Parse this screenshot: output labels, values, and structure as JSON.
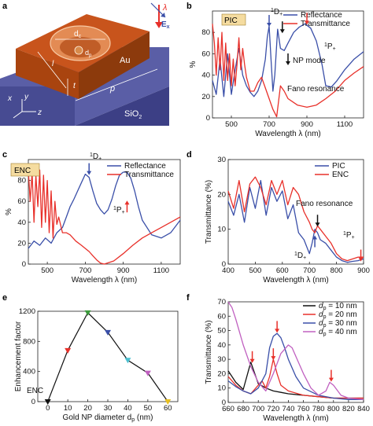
{
  "panels": {
    "a": {
      "letter": "a",
      "lambda": "λ",
      "field": "E",
      "field_sub": "x",
      "dc": "d",
      "dc_sub": "c",
      "dp": "d",
      "dp_sub": "p",
      "au": "Au",
      "sio2": "SiO",
      "sio2_sub": "2",
      "l": "l",
      "t": "t",
      "p": "p",
      "x": "x",
      "y": "y",
      "z": "z"
    },
    "b": {
      "letter": "b",
      "inset": "PIC",
      "ann_d": "D",
      "ann_d_pre": "1",
      "ann_d_sub": "+",
      "ann_p": "P",
      "ann_p_pre": "1",
      "ann_p_sub": "+",
      "ann_np": "NP mode",
      "ann_fano": "Fano resonance"
    },
    "c": {
      "letter": "c",
      "inset": "ENC",
      "ann_d": "D",
      "ann_d_pre": "1",
      "ann_d_sub": "+",
      "ann_p": "P",
      "ann_p_pre": "1",
      "ann_p_sub": "+"
    },
    "d": {
      "letter": "d",
      "ann_fano": "Fano resonance",
      "ann_d": "D",
      "ann_d_pre": "1",
      "ann_d_sub": "+",
      "ann_p": "P",
      "ann_p_pre": "1",
      "ann_p_sub": "+"
    },
    "e": {
      "letter": "e",
      "ann_enc": "ENC"
    },
    "f": {
      "letter": "f"
    }
  },
  "colors": {
    "reflectance": "#3a4fa8",
    "transmittance": "#e8302a",
    "pic": "#3a4fa8",
    "enc": "#e8302a",
    "au": "#c8541c",
    "sio2": "#4b4f96",
    "arrow_blue": "#3a4fa8",
    "arrow_red": "#e8302a"
  },
  "chart_data": [
    {
      "panel": "b",
      "type": "line",
      "xlabel": "Wavelength λ (nm)",
      "ylabel": "%",
      "xlim": [
        400,
        1200
      ],
      "ylim": [
        0,
        100
      ],
      "xticks": [
        500,
        700,
        900,
        1100
      ],
      "yticks": [
        0,
        20,
        40,
        60,
        80
      ],
      "series": [
        {
          "name": "Reflectance",
          "color": "#3a4fa8",
          "x": [
            400,
            420,
            440,
            460,
            480,
            500,
            520,
            540,
            560,
            580,
            600,
            620,
            640,
            660,
            680,
            690,
            700,
            710,
            720,
            730,
            745,
            760,
            780,
            800,
            830,
            860,
            890,
            920,
            950,
            980,
            1000,
            1030,
            1060,
            1100,
            1150,
            1200
          ],
          "y": [
            35,
            22,
            55,
            20,
            60,
            22,
            45,
            65,
            40,
            30,
            24,
            20,
            25,
            35,
            55,
            75,
            86,
            55,
            25,
            40,
            83,
            65,
            63,
            70,
            80,
            85,
            88,
            84,
            72,
            50,
            30,
            29,
            35,
            45,
            55,
            62
          ]
        },
        {
          "name": "Transmittance",
          "color": "#e8302a",
          "x": [
            400,
            410,
            420,
            430,
            440,
            450,
            460,
            470,
            480,
            490,
            500,
            510,
            520,
            530,
            540,
            550,
            560,
            570,
            580,
            600,
            620,
            640,
            660,
            680,
            700,
            720,
            740,
            760,
            780,
            800,
            850,
            900,
            950,
            1000,
            1050,
            1100,
            1150,
            1200
          ],
          "y": [
            88,
            70,
            40,
            75,
            45,
            80,
            35,
            70,
            35,
            60,
            30,
            55,
            30,
            50,
            75,
            45,
            65,
            50,
            38,
            25,
            25,
            33,
            38,
            28,
            18,
            8,
            1,
            30,
            25,
            18,
            12,
            10,
            12,
            18,
            25,
            35,
            42,
            48
          ]
        }
      ]
    },
    {
      "panel": "c",
      "type": "line",
      "xlabel": "Wavelength λ (nm)",
      "ylabel": "%",
      "xlim": [
        400,
        1200
      ],
      "ylim": [
        0,
        100
      ],
      "xticks": [
        500,
        700,
        900,
        1100
      ],
      "yticks": [
        0,
        20,
        40,
        60,
        80
      ],
      "series": [
        {
          "name": "Reflectance",
          "color": "#3a4fa8",
          "x": [
            400,
            430,
            460,
            490,
            520,
            550,
            580,
            600,
            620,
            640,
            660,
            680,
            700,
            720,
            740,
            760,
            780,
            800,
            820,
            840,
            860,
            880,
            900,
            920,
            940,
            960,
            980,
            1000,
            1050,
            1100,
            1150,
            1200
          ],
          "y": [
            15,
            22,
            18,
            25,
            20,
            30,
            35,
            45,
            55,
            62,
            70,
            78,
            86,
            83,
            70,
            58,
            52,
            48,
            52,
            62,
            75,
            85,
            88,
            88,
            82,
            70,
            55,
            42,
            28,
            25,
            30,
            42
          ]
        },
        {
          "name": "Transmittance",
          "color": "#e8302a",
          "x": [
            400,
            410,
            420,
            430,
            440,
            450,
            460,
            470,
            480,
            490,
            500,
            510,
            520,
            530,
            540,
            550,
            560,
            580,
            600,
            620,
            650,
            680,
            700,
            720,
            740,
            760,
            780,
            800,
            850,
            900,
            950,
            1000,
            1050,
            1100,
            1150,
            1200
          ],
          "y": [
            90,
            60,
            88,
            40,
            85,
            55,
            90,
            35,
            85,
            40,
            80,
            30,
            70,
            25,
            60,
            38,
            45,
            30,
            30,
            28,
            22,
            18,
            15,
            12,
            8,
            4,
            1,
            0,
            3,
            10,
            18,
            25,
            30,
            35,
            40,
            45
          ]
        }
      ]
    },
    {
      "panel": "d",
      "type": "line",
      "xlabel": "Wavelength λ (nm)",
      "ylabel": "Transmittance (%)",
      "xlim": [
        400,
        900
      ],
      "ylim": [
        0,
        30
      ],
      "xticks": [
        400,
        500,
        600,
        700,
        800,
        900
      ],
      "yticks": [
        0,
        10,
        20,
        30
      ],
      "series": [
        {
          "name": "PIC",
          "color": "#3a4fa8",
          "x": [
            400,
            420,
            440,
            460,
            480,
            500,
            520,
            540,
            560,
            580,
            600,
            620,
            640,
            660,
            680,
            700,
            710,
            720,
            730,
            740,
            760,
            780,
            800,
            820,
            840,
            860,
            880,
            900
          ],
          "y": [
            18,
            14,
            20,
            12,
            22,
            16,
            24,
            14,
            22,
            18,
            21,
            13,
            17,
            9,
            7,
            3,
            6,
            10,
            9,
            7,
            6,
            4,
            2,
            1,
            0.5,
            0.8,
            1,
            1.5
          ]
        },
        {
          "name": "ENC",
          "color": "#e8302a",
          "x": [
            400,
            420,
            440,
            460,
            480,
            500,
            520,
            540,
            560,
            580,
            600,
            620,
            640,
            660,
            680,
            700,
            710,
            720,
            730,
            740,
            760,
            780,
            800,
            820,
            840,
            860,
            880,
            900
          ],
          "y": [
            21,
            16,
            24,
            15,
            23,
            25,
            22,
            17,
            24,
            20,
            24,
            17,
            22,
            20,
            15,
            12,
            10,
            9,
            11,
            10,
            8,
            6,
            3,
            1.5,
            1,
            1.5,
            2,
            2
          ]
        }
      ]
    },
    {
      "panel": "e",
      "type": "scatter",
      "xlabel": "Gold NP diameter d",
      "xlabel_sub": "p",
      "xlabel_unit": " (nm)",
      "ylabel": "Enhancement factor",
      "xlim": [
        -5,
        65
      ],
      "ylim": [
        0,
        1200
      ],
      "xticks": [
        0,
        10,
        20,
        30,
        40,
        50,
        60
      ],
      "yticks": [
        0,
        400,
        800,
        1200
      ],
      "x": [
        0,
        10,
        20,
        30,
        40,
        50,
        60
      ],
      "y": [
        0,
        680,
        1180,
        920,
        550,
        380,
        0
      ],
      "point_colors": [
        "#111111",
        "#e8302a",
        "#3c9a3c",
        "#3a4fa8",
        "#4bc0d0",
        "#c060c0",
        "#e8c020"
      ]
    },
    {
      "panel": "f",
      "type": "line",
      "xlabel": "Wavelength λ (nm)",
      "ylabel": "Transmittance (%)",
      "xlim": [
        660,
        840
      ],
      "ylim": [
        0,
        70
      ],
      "xticks": [
        660,
        680,
        700,
        720,
        740,
        760,
        780,
        800,
        820,
        840
      ],
      "yticks": [
        0,
        10,
        20,
        30,
        40,
        50,
        60,
        70
      ],
      "series": [
        {
          "name": "10 nm",
          "legend": "d",
          "legend_sub": "p",
          "legend_val": " = 10 nm",
          "color": "#111111",
          "x": [
            660,
            670,
            680,
            690,
            700,
            710,
            720,
            730,
            740,
            760,
            780,
            800,
            820,
            840
          ],
          "y": [
            22,
            14,
            9,
            28,
            13,
            10,
            8,
            7,
            6,
            5,
            4,
            3,
            3,
            3
          ]
        },
        {
          "name": "20 nm",
          "legend": "d",
          "legend_sub": "p",
          "legend_val": " = 20 nm",
          "color": "#e8302a",
          "x": [
            660,
            670,
            680,
            690,
            700,
            705,
            710,
            715,
            720,
            725,
            730,
            740,
            760,
            780,
            800,
            820,
            840
          ],
          "y": [
            18,
            12,
            8,
            6,
            12,
            15,
            10,
            18,
            30,
            20,
            12,
            8,
            5,
            4,
            3,
            3,
            3
          ]
        },
        {
          "name": "30 nm",
          "legend": "d",
          "legend_sub": "p",
          "legend_val": " = 30 nm",
          "color": "#3a4fa8",
          "x": [
            660,
            670,
            680,
            690,
            700,
            710,
            715,
            720,
            725,
            730,
            735,
            740,
            750,
            760,
            780,
            800,
            820,
            840
          ],
          "y": [
            15,
            11,
            8,
            6,
            10,
            20,
            38,
            46,
            48,
            45,
            38,
            30,
            18,
            10,
            5,
            3,
            2,
            2
          ]
        },
        {
          "name": "40 nm",
          "legend": "d",
          "legend_sub": "p",
          "legend_val": " = 40 nm",
          "color": "#c060c0",
          "x": [
            660,
            665,
            670,
            680,
            690,
            700,
            710,
            720,
            730,
            740,
            745,
            750,
            760,
            770,
            780,
            790,
            795,
            800,
            810,
            820,
            840
          ],
          "y": [
            70,
            66,
            58,
            40,
            25,
            14,
            8,
            20,
            34,
            40,
            38,
            32,
            20,
            10,
            5,
            8,
            14,
            12,
            5,
            3,
            2
          ]
        }
      ]
    }
  ],
  "arrows": [
    {
      "panel": "b",
      "wl": 700,
      "val": 86
    },
    {
      "panel": "b",
      "wl": 770,
      "val": 80
    },
    {
      "panel": "b",
      "wl": 800,
      "val": 50
    },
    {
      "panel": "b",
      "wl": 900,
      "val": 88
    },
    {
      "panel": "c",
      "wl": 720,
      "val": 86
    },
    {
      "panel": "c",
      "wl": 920,
      "val": 60
    },
    {
      "panel": "d",
      "wl": 720,
      "val": 8
    },
    {
      "panel": "d",
      "wl": 730,
      "val": 11
    },
    {
      "panel": "d",
      "wl": 890,
      "val": 1
    },
    {
      "panel": "f",
      "wl": 692,
      "val": 28
    },
    {
      "panel": "f",
      "wl": 720,
      "val": 30
    },
    {
      "panel": "f",
      "wl": 725,
      "val": 49
    },
    {
      "panel": "f",
      "wl": 797,
      "val": 15
    }
  ]
}
